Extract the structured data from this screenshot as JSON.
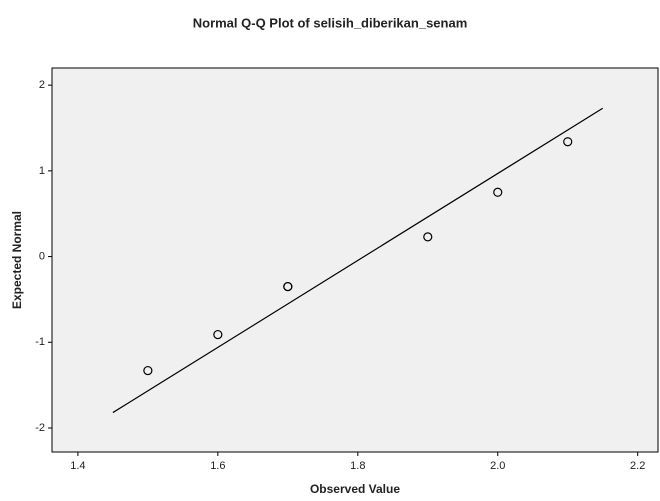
{
  "chart_data": {
    "type": "scatter",
    "title": "Normal Q-Q Plot of selisih_diberikan_senam",
    "xlabel": "Observed Value",
    "ylabel": "Expected Normal",
    "x": [
      1.5,
      1.6,
      1.7,
      1.7,
      1.9,
      2.0,
      2.1
    ],
    "values": [
      -1.33,
      -0.91,
      -0.35,
      -0.35,
      0.23,
      0.75,
      1.34
    ],
    "reference_line": {
      "x": [
        1.45,
        2.15
      ],
      "y": [
        -1.82,
        1.73
      ]
    },
    "xlim": [
      1.363,
      2.229
    ],
    "xticks": [
      1.4,
      1.6,
      1.8,
      {
        "value": 2,
        "label": "2.0"
      },
      2.2
    ],
    "ylim": [
      -2.28,
      2.2
    ],
    "yticks": [
      -2,
      -1,
      0,
      1,
      2
    ],
    "color": "#000000",
    "background": "#f0f0f0"
  }
}
